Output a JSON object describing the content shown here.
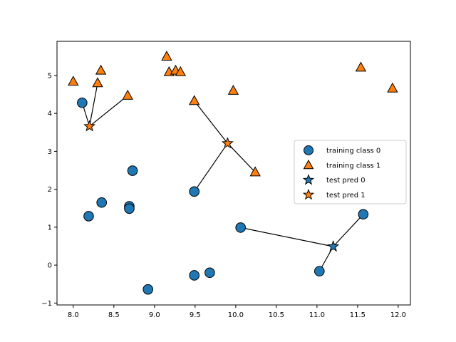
{
  "chart_data": {
    "type": "scatter",
    "title": "",
    "xlabel": "",
    "ylabel": "",
    "xlim": [
      7.8,
      12.15
    ],
    "ylim": [
      -1.05,
      5.9
    ],
    "xticks": [
      8.0,
      8.5,
      9.0,
      9.5,
      10.0,
      10.5,
      11.0,
      11.5,
      12.0
    ],
    "xtick_labels": [
      "8.0",
      "8.5",
      "9.0",
      "9.5",
      "10.0",
      "10.5",
      "11.0",
      "11.5",
      "12.0"
    ],
    "yticks": [
      -1,
      0,
      1,
      2,
      3,
      4,
      5
    ],
    "ytick_labels": [
      "−1",
      "0",
      "1",
      "2",
      "3",
      "4",
      "5"
    ],
    "grid": false,
    "legend_position": "center-right",
    "series": [
      {
        "name": "training class 0",
        "marker": "circle",
        "color": "#1f77b4",
        "points": [
          [
            8.11,
            4.28
          ],
          [
            8.19,
            1.29
          ],
          [
            8.35,
            1.65
          ],
          [
            8.69,
            1.55
          ],
          [
            8.69,
            1.49
          ],
          [
            8.73,
            2.49
          ],
          [
            8.92,
            -0.64
          ],
          [
            9.49,
            1.94
          ],
          [
            9.49,
            -0.27
          ],
          [
            9.68,
            -0.2
          ],
          [
            10.06,
            0.99
          ],
          [
            11.03,
            -0.16
          ],
          [
            11.57,
            1.34
          ]
        ]
      },
      {
        "name": "training class 1",
        "marker": "triangle",
        "color": "#ff7f0e",
        "points": [
          [
            8.0,
            4.84
          ],
          [
            8.3,
            4.8
          ],
          [
            8.34,
            5.13
          ],
          [
            8.67,
            4.47
          ],
          [
            9.15,
            5.5
          ],
          [
            9.18,
            5.09
          ],
          [
            9.26,
            5.13
          ],
          [
            9.32,
            5.09
          ],
          [
            9.49,
            4.33
          ],
          [
            9.97,
            4.6
          ],
          [
            10.24,
            2.45
          ],
          [
            11.54,
            5.21
          ],
          [
            11.93,
            4.66
          ]
        ]
      },
      {
        "name": "test pred 0",
        "marker": "star",
        "color": "#1f77b4",
        "points": [
          [
            11.2,
            0.49
          ]
        ]
      },
      {
        "name": "test pred 1",
        "marker": "star",
        "color": "#ff7f0e",
        "points": [
          [
            8.2,
            3.66
          ],
          [
            9.9,
            3.21
          ]
        ]
      }
    ],
    "neighbor_links": [
      {
        "from": [
          8.2,
          3.66
        ],
        "to": [
          8.11,
          4.28
        ]
      },
      {
        "from": [
          8.2,
          3.66
        ],
        "to": [
          8.3,
          4.8
        ]
      },
      {
        "from": [
          8.2,
          3.66
        ],
        "to": [
          8.67,
          4.47
        ]
      },
      {
        "from": [
          9.9,
          3.21
        ],
        "to": [
          9.49,
          4.33
        ]
      },
      {
        "from": [
          9.9,
          3.21
        ],
        "to": [
          10.24,
          2.45
        ]
      },
      {
        "from": [
          9.9,
          3.21
        ],
        "to": [
          9.49,
          1.94
        ]
      },
      {
        "from": [
          11.2,
          0.49
        ],
        "to": [
          10.06,
          0.99
        ]
      },
      {
        "from": [
          11.2,
          0.49
        ],
        "to": [
          11.03,
          -0.16
        ]
      },
      {
        "from": [
          11.2,
          0.49
        ],
        "to": [
          11.57,
          1.34
        ]
      }
    ]
  }
}
